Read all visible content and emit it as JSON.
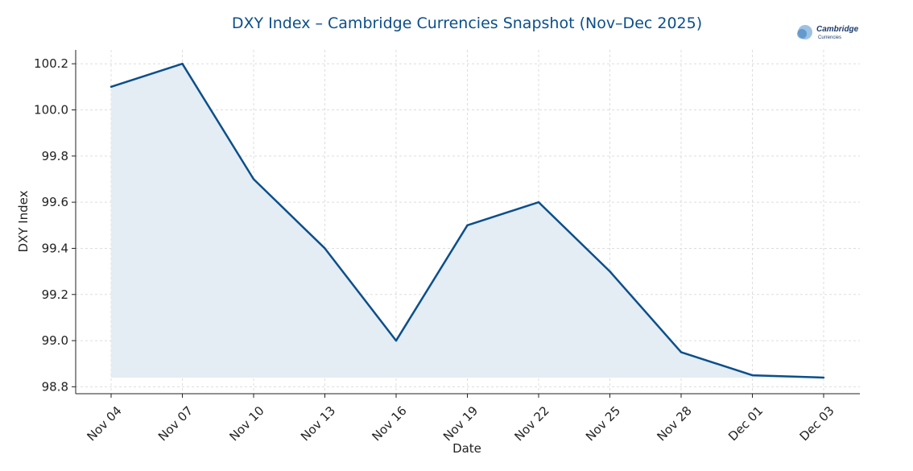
{
  "logo": {
    "name": "Cambridge",
    "subtitle": "Currencies"
  },
  "colors": {
    "line": "#0b4f8a",
    "fill": "#e4ecf4",
    "title": "#0b4f8a",
    "grid": "#dddddd"
  },
  "chart_data": {
    "type": "area",
    "title": "DXY Index – Cambridge Currencies Snapshot (Nov–Dec 2025)",
    "xlabel": "Date",
    "ylabel": "DXY Index",
    "x": [
      "Nov 04",
      "Nov 07",
      "Nov 10",
      "Nov 13",
      "Nov 16",
      "Nov 19",
      "Nov 22",
      "Nov 25",
      "Nov 28",
      "Dec 01",
      "Dec 03"
    ],
    "series": [
      {
        "values": [
          100.1,
          100.2,
          99.7,
          99.4,
          99.0,
          99.5,
          99.6,
          99.3,
          98.95,
          98.85,
          98.84
        ]
      }
    ],
    "yticks": [
      "98.8",
      "99.0",
      "99.2",
      "99.4",
      "99.6",
      "99.8",
      "100.0",
      "100.2"
    ],
    "ylim": [
      98.77,
      100.26
    ],
    "grid": true,
    "legend": "none"
  }
}
